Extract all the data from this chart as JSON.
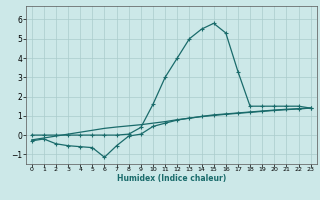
{
  "xlabel": "Humidex (Indice chaleur)",
  "ylabel": "",
  "xlim": [
    -0.5,
    23.5
  ],
  "ylim": [
    -1.5,
    6.7
  ],
  "xticks": [
    0,
    1,
    2,
    3,
    4,
    5,
    6,
    7,
    8,
    9,
    10,
    11,
    12,
    13,
    14,
    15,
    16,
    17,
    18,
    19,
    20,
    21,
    22,
    23
  ],
  "yticks": [
    -1,
    0,
    1,
    2,
    3,
    4,
    5,
    6
  ],
  "background_color": "#cce8e8",
  "grid_color": "#aacccc",
  "line_color": "#1a6b6b",
  "line_width": 0.9,
  "marker": "+",
  "marker_size": 3,
  "curve1_x": [
    0,
    1,
    2,
    3,
    4,
    5,
    6,
    7,
    8,
    9,
    10,
    11,
    12,
    13,
    14,
    15,
    16,
    17,
    18,
    19,
    20,
    21,
    22,
    23
  ],
  "curve1_y": [
    0.0,
    0.0,
    0.0,
    0.0,
    0.0,
    0.0,
    0.0,
    0.0,
    0.05,
    0.4,
    1.6,
    3.0,
    4.0,
    5.0,
    5.5,
    5.8,
    5.3,
    3.3,
    1.5,
    1.5,
    1.5,
    1.5,
    1.5,
    1.4
  ],
  "curve2_x": [
    0,
    1,
    2,
    3,
    4,
    5,
    6,
    7,
    8,
    9,
    10,
    11,
    12,
    13,
    14,
    15,
    16,
    17,
    18,
    19,
    20,
    21,
    22,
    23
  ],
  "curve2_y": [
    -0.25,
    -0.15,
    -0.05,
    0.05,
    0.15,
    0.25,
    0.35,
    0.42,
    0.48,
    0.54,
    0.62,
    0.7,
    0.8,
    0.88,
    0.96,
    1.02,
    1.08,
    1.13,
    1.18,
    1.23,
    1.28,
    1.32,
    1.36,
    1.4
  ],
  "curve3_x": [
    0,
    1,
    2,
    3,
    4,
    5,
    6,
    7,
    8,
    9,
    10,
    11,
    12,
    13,
    14,
    15,
    16,
    17,
    18,
    19,
    20,
    21,
    22,
    23
  ],
  "curve3_y": [
    -0.3,
    -0.2,
    -0.45,
    -0.55,
    -0.6,
    -0.65,
    -1.15,
    -0.55,
    -0.05,
    0.05,
    0.45,
    0.62,
    0.78,
    0.88,
    0.97,
    1.05,
    1.1,
    1.15,
    1.2,
    1.25,
    1.3,
    1.34,
    1.37,
    1.4
  ]
}
